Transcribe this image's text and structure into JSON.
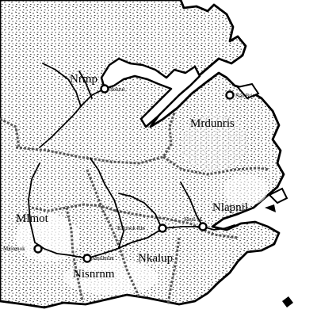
{
  "map": {
    "regions": [
      {
        "id": "r1",
        "label": "Nrmp"
      },
      {
        "id": "r2",
        "label": "Mrdunris"
      },
      {
        "id": "r3",
        "label": "Nlapnil"
      },
      {
        "id": "r4",
        "label": "Mlmot"
      },
      {
        "id": "r5",
        "label": "Nkalup"
      },
      {
        "id": "r6",
        "label": "Nisnrnm"
      }
    ],
    "towns": [
      {
        "id": "t1",
        "label": "Nenrut"
      },
      {
        "id": "t2",
        "label": "Nas Brit"
      },
      {
        "id": "t3",
        "label": "Mem M"
      },
      {
        "id": "t4",
        "label": "Kilpnok Rin"
      },
      {
        "id": "t5",
        "label": "Mlonmok"
      },
      {
        "id": "t6",
        "label": "Mnnlmlnt"
      }
    ],
    "colors": {
      "ink": "#000000",
      "paper": "#ffffff",
      "stipple": "#111111"
    }
  }
}
